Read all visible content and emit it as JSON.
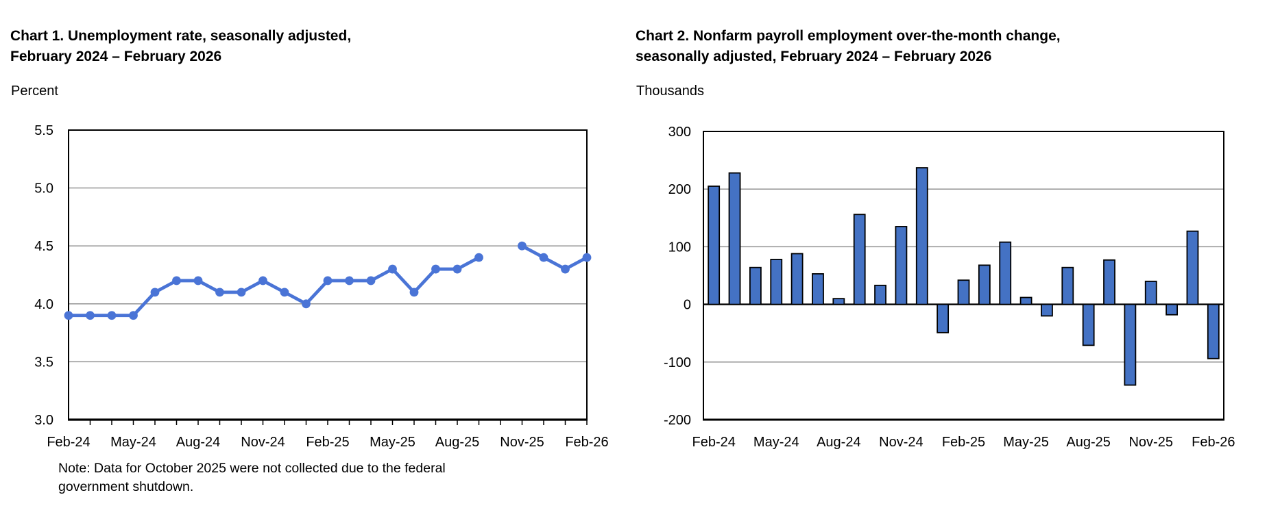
{
  "page": {
    "background": "#ffffff"
  },
  "chart1": {
    "title_line1": "Chart 1. Unemployment rate, seasonally adjusted,",
    "title_line2": "February 2024 – February 2026",
    "unit_label": "Percent",
    "note_line1": "Note: Data for October 2025 were not collected due to the federal",
    "note_line2": "government shutdown."
  },
  "chart2": {
    "title_line1": "Chart 2. Nonfarm payroll employment over-the-month change,",
    "title_line2": "seasonally adjusted, February 2024 – February 2026",
    "unit_label": "Thousands"
  },
  "chart_data": [
    {
      "type": "line",
      "title": "Chart 1. Unemployment rate, seasonally adjusted, February 2024 – February 2026",
      "ylabel": "Percent",
      "ylim": [
        3.0,
        5.5
      ],
      "ytick_step": 0.5,
      "ytick_labels": [
        "3.0",
        "3.5",
        "4.0",
        "4.5",
        "5.0",
        "5.5"
      ],
      "categories": [
        "Feb-24",
        "Mar-24",
        "Apr-24",
        "May-24",
        "Jun-24",
        "Jul-24",
        "Aug-24",
        "Sep-24",
        "Oct-24",
        "Nov-24",
        "Dec-24",
        "Jan-25",
        "Feb-25",
        "Mar-25",
        "Apr-25",
        "May-25",
        "Jun-25",
        "Jul-25",
        "Aug-25",
        "Sep-25",
        "Oct-25",
        "Nov-25",
        "Dec-25",
        "Jan-26",
        "Feb-26"
      ],
      "values": [
        3.9,
        3.9,
        3.9,
        3.9,
        4.1,
        4.2,
        4.2,
        4.1,
        4.1,
        4.2,
        4.1,
        4.0,
        4.2,
        4.2,
        4.2,
        4.3,
        4.1,
        4.3,
        4.3,
        4.4,
        null,
        4.5,
        4.4,
        4.3,
        4.4
      ],
      "missing_category": "Oct-25",
      "xtick_labels": [
        "Feb-24",
        "May-24",
        "Aug-24",
        "Nov-24",
        "Feb-25",
        "May-25",
        "Aug-25",
        "Nov-25",
        "Feb-26"
      ],
      "xtick_every": 3,
      "line_color": "#4a74d6",
      "marker": "circle",
      "grid": "horizontal",
      "legend": "none",
      "note": "Note: Data for October 2025 were not collected due to the federal government shutdown."
    },
    {
      "type": "bar",
      "title": "Chart 2. Nonfarm payroll employment over-the-month change, seasonally adjusted, February 2024 – February 2026",
      "ylabel": "Thousands",
      "ylim": [
        -200,
        300
      ],
      "ytick_step": 100,
      "ytick_labels": [
        "-200",
        "-100",
        "0",
        "100",
        "200",
        "300"
      ],
      "categories": [
        "Feb-24",
        "Mar-24",
        "Apr-24",
        "May-24",
        "Jun-24",
        "Jul-24",
        "Aug-24",
        "Sep-24",
        "Oct-24",
        "Nov-24",
        "Dec-24",
        "Jan-25",
        "Feb-25",
        "Mar-25",
        "Apr-25",
        "May-25",
        "Jun-25",
        "Jul-25",
        "Aug-25",
        "Sep-25",
        "Oct-25",
        "Nov-25",
        "Dec-25",
        "Jan-26",
        "Feb-26"
      ],
      "values": [
        205,
        228,
        64,
        78,
        88,
        53,
        10,
        156,
        33,
        135,
        237,
        -49,
        42,
        68,
        108,
        12,
        -20,
        64,
        -71,
        77,
        -140,
        40,
        -18,
        127,
        -94
      ],
      "xtick_labels": [
        "Feb-24",
        "May-24",
        "Aug-24",
        "Nov-24",
        "Feb-25",
        "May-25",
        "Aug-25",
        "Nov-25",
        "Feb-26"
      ],
      "xtick_every": 3,
      "bar_color": "#4472c4",
      "bar_border_color": "#000000",
      "grid": "horizontal",
      "legend": "none"
    }
  ],
  "style": {
    "grid_color": "#8a8a8a",
    "axis_color": "#000000",
    "text_color": "#000000"
  }
}
